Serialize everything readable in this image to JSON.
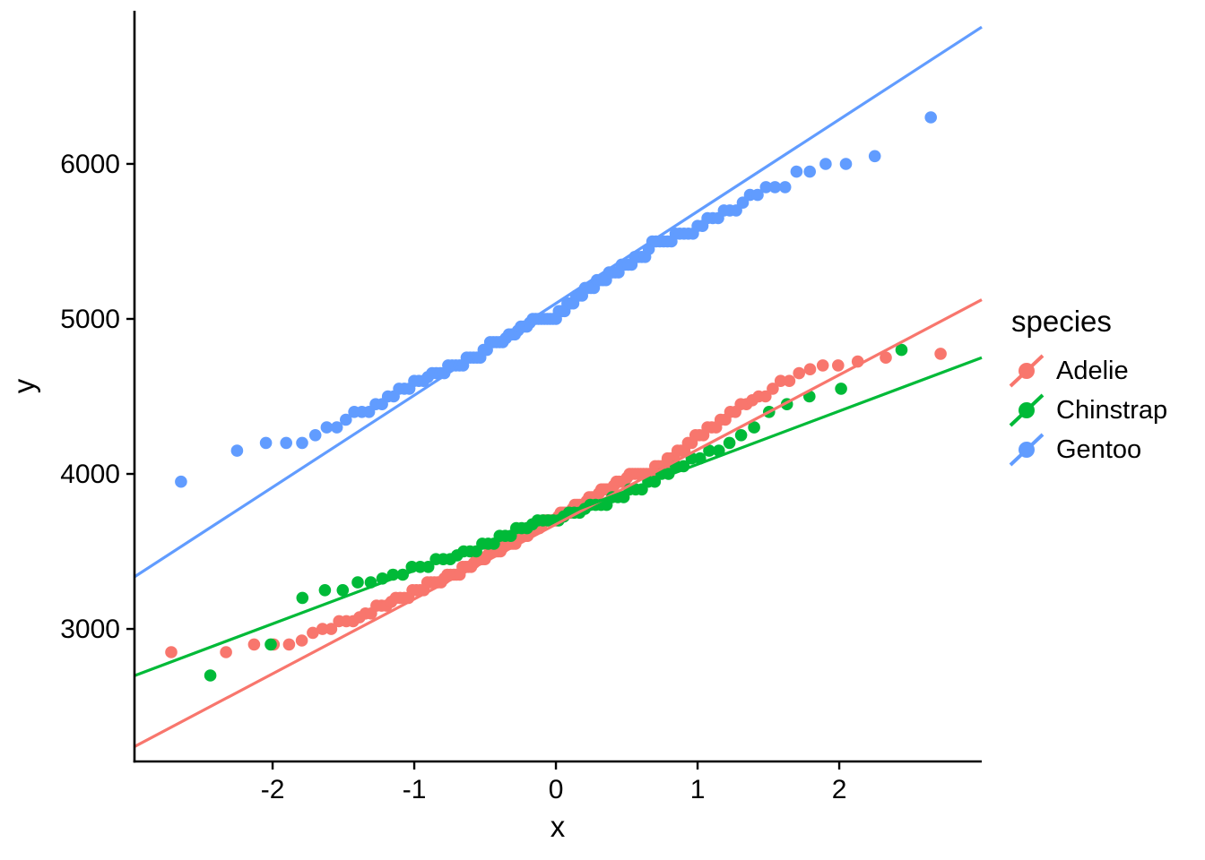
{
  "chart_data": {
    "type": "scatter",
    "subtype": "qq-plot",
    "title": "",
    "xlabel": "x",
    "ylabel": "y",
    "x_meaning": "theoretical normal quantiles: x_i = qnorm((i-0.5)/n) of sorted sample",
    "x_ticks": [
      -2,
      -1,
      0,
      1,
      2
    ],
    "y_ticks": [
      3000,
      4000,
      5000,
      6000
    ],
    "xlim": [
      -2.975,
      3.006
    ],
    "ylim": [
      2145,
      6988
    ],
    "grid": false,
    "legend_title": "species",
    "legend_position": "right",
    "point_radius": 6.8,
    "line_width": 3.2,
    "series": [
      {
        "name": "Adelie",
        "color": "#F8766D",
        "n": 151,
        "qq_line": {
          "intercept": 3675,
          "slope": 482
        },
        "sorted_y": [
          2850,
          2850,
          2900,
          2900,
          2900,
          2925,
          2975,
          3000,
          3000,
          3050,
          3050,
          3050,
          3075,
          3100,
          3100,
          3150,
          3150,
          3150,
          3175,
          3200,
          3200,
          3200,
          3200,
          3250,
          3250,
          3250,
          3250,
          3300,
          3300,
          3300,
          3300,
          3300,
          3325,
          3350,
          3350,
          3350,
          3350,
          3350,
          3400,
          3400,
          3400,
          3400,
          3425,
          3450,
          3450,
          3450,
          3450,
          3475,
          3500,
          3500,
          3500,
          3500,
          3500,
          3525,
          3550,
          3550,
          3550,
          3550,
          3550,
          3600,
          3600,
          3600,
          3600,
          3600,
          3625,
          3650,
          3650,
          3650,
          3650,
          3675,
          3700,
          3700,
          3700,
          3700,
          3700,
          3700,
          3725,
          3750,
          3750,
          3750,
          3750,
          3750,
          3775,
          3800,
          3800,
          3800,
          3800,
          3800,
          3825,
          3850,
          3850,
          3850,
          3850,
          3875,
          3900,
          3900,
          3900,
          3900,
          3900,
          3925,
          3950,
          3950,
          3950,
          3950,
          3975,
          4000,
          4000,
          4000,
          4000,
          4000,
          4000,
          4000,
          4000,
          4000,
          4050,
          4050,
          4050,
          4050,
          4100,
          4100,
          4100,
          4150,
          4150,
          4150,
          4200,
          4200,
          4250,
          4250,
          4250,
          4300,
          4300,
          4300,
          4350,
          4350,
          4400,
          4400,
          4450,
          4450,
          4475,
          4500,
          4500,
          4550,
          4600,
          4600,
          4650,
          4675,
          4700,
          4700,
          4725,
          4750,
          4775
        ]
      },
      {
        "name": "Chinstrap",
        "color": "#00BA38",
        "n": 68,
        "qq_line": {
          "intercept": 3719,
          "slope": 343
        },
        "sorted_y": [
          2700,
          2900,
          3200,
          3250,
          3250,
          3300,
          3300,
          3325,
          3350,
          3350,
          3400,
          3400,
          3400,
          3450,
          3450,
          3450,
          3475,
          3500,
          3500,
          3500,
          3550,
          3550,
          3550,
          3600,
          3600,
          3600,
          3650,
          3650,
          3650,
          3675,
          3700,
          3700,
          3700,
          3700,
          3700,
          3725,
          3750,
          3750,
          3750,
          3775,
          3800,
          3800,
          3800,
          3800,
          3850,
          3850,
          3850,
          3900,
          3900,
          3900,
          3950,
          3950,
          4000,
          4000,
          4050,
          4050,
          4100,
          4100,
          4150,
          4150,
          4200,
          4250,
          4300,
          4400,
          4450,
          4500,
          4550,
          4800
        ]
      },
      {
        "name": "Gentoo",
        "color": "#619CFF",
        "n": 123,
        "qq_line": {
          "intercept": 5100,
          "slope": 593
        },
        "sorted_y": [
          3950,
          4150,
          4200,
          4200,
          4200,
          4250,
          4300,
          4300,
          4350,
          4400,
          4400,
          4400,
          4450,
          4450,
          4500,
          4500,
          4550,
          4550,
          4550,
          4600,
          4600,
          4600,
          4625,
          4650,
          4650,
          4650,
          4650,
          4700,
          4700,
          4700,
          4700,
          4700,
          4750,
          4750,
          4750,
          4750,
          4750,
          4800,
          4800,
          4850,
          4850,
          4850,
          4850,
          4850,
          4875,
          4900,
          4900,
          4900,
          4925,
          4950,
          4950,
          4950,
          4975,
          5000,
          5000,
          5000,
          5000,
          5000,
          5000,
          5000,
          5000,
          5000,
          5050,
          5050,
          5050,
          5100,
          5100,
          5100,
          5150,
          5150,
          5150,
          5200,
          5200,
          5200,
          5200,
          5250,
          5250,
          5250,
          5250,
          5300,
          5300,
          5300,
          5300,
          5350,
          5350,
          5350,
          5350,
          5400,
          5400,
          5400,
          5400,
          5450,
          5500,
          5500,
          5500,
          5500,
          5500,
          5500,
          5550,
          5550,
          5550,
          5550,
          5550,
          5600,
          5600,
          5650,
          5650,
          5650,
          5700,
          5700,
          5700,
          5750,
          5800,
          5800,
          5850,
          5850,
          5850,
          5950,
          5950,
          6000,
          6000,
          6050,
          6300
        ]
      }
    ]
  },
  "legend": {
    "title": "species",
    "items": [
      {
        "label": "Adelie"
      },
      {
        "label": "Chinstrap"
      },
      {
        "label": "Gentoo"
      }
    ]
  }
}
